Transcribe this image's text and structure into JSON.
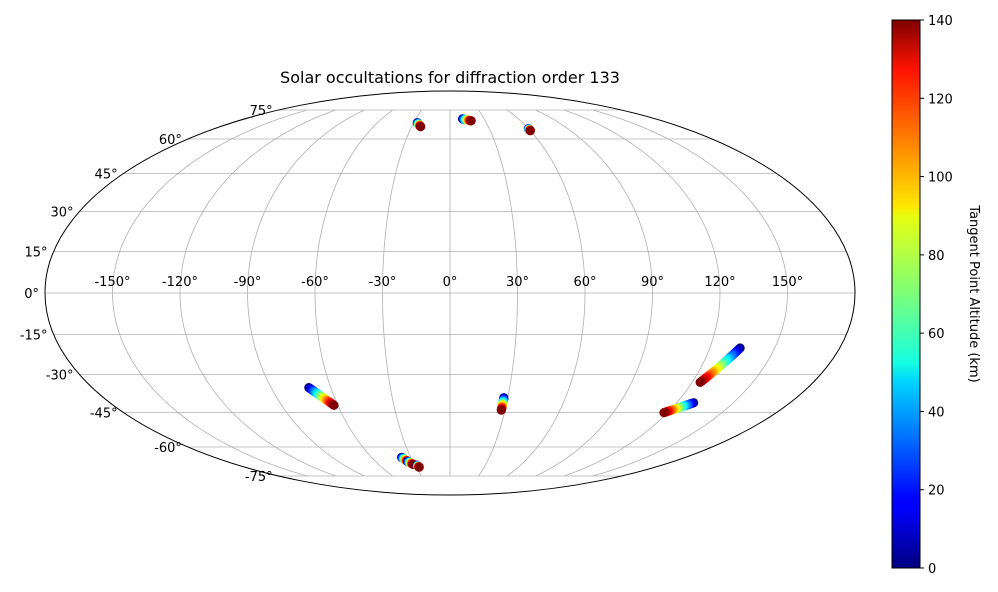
{
  "chart_data": {
    "type": "scatter",
    "projection": "mollweide",
    "title": "Solar occultations for diffraction order 133",
    "grid": true,
    "x_ticks": [
      "-150°",
      "-120°",
      "-90°",
      "-60°",
      "-30°",
      "0°",
      "30°",
      "60°",
      "90°",
      "120°",
      "150°"
    ],
    "x_tick_values": [
      -150,
      -120,
      -90,
      -60,
      -30,
      0,
      30,
      60,
      90,
      120,
      150
    ],
    "y_ticks": [
      "-75°",
      "-60°",
      "-45°",
      "-30°",
      "-15°",
      "0°",
      "15°",
      "30°",
      "45°",
      "60°",
      "75°"
    ],
    "y_tick_values": [
      -75,
      -60,
      -45,
      -30,
      -15,
      0,
      15,
      30,
      45,
      60,
      75
    ],
    "colorbar": {
      "label": "Tangent Point Altitude (km)",
      "colormap": "jet",
      "range": [
        0,
        140
      ],
      "ticks": [
        "0",
        "20",
        "40",
        "60",
        "80",
        "100",
        "120",
        "140"
      ],
      "tick_values": [
        0,
        20,
        40,
        60,
        80,
        100,
        120,
        140
      ]
    },
    "tracks": [
      {
        "lon_start": 134,
        "lat_start": -20,
        "lon_end": 124,
        "lat_end": -33
      },
      {
        "lon_start": 129,
        "lat_start": -41,
        "lon_end": 118,
        "lat_end": -45
      },
      {
        "lon_start": -71,
        "lat_start": -35,
        "lon_end": -62,
        "lat_end": -42
      },
      {
        "lon_start": 28,
        "lat_start": -39,
        "lon_end": 28,
        "lat_end": -44
      },
      {
        "lon_start": -37,
        "lat_start": -65,
        "lon_end": -34,
        "lat_end": -67
      },
      {
        "lon_start": -34,
        "lat_start": -67,
        "lon_end": -31,
        "lat_end": -68.5
      },
      {
        "lon_start": -28,
        "lat_start": -69,
        "lon_end": -27,
        "lat_end": -70
      },
      {
        "lon_start": -27,
        "lat_start": 68,
        "lon_end": -23,
        "lat_end": 66
      },
      {
        "lon_start": 11,
        "lat_start": 70,
        "lon_end": 18,
        "lat_end": 69
      },
      {
        "lon_start": 60,
        "lat_start": 65,
        "lon_end": 60,
        "lat_end": 64
      }
    ]
  }
}
